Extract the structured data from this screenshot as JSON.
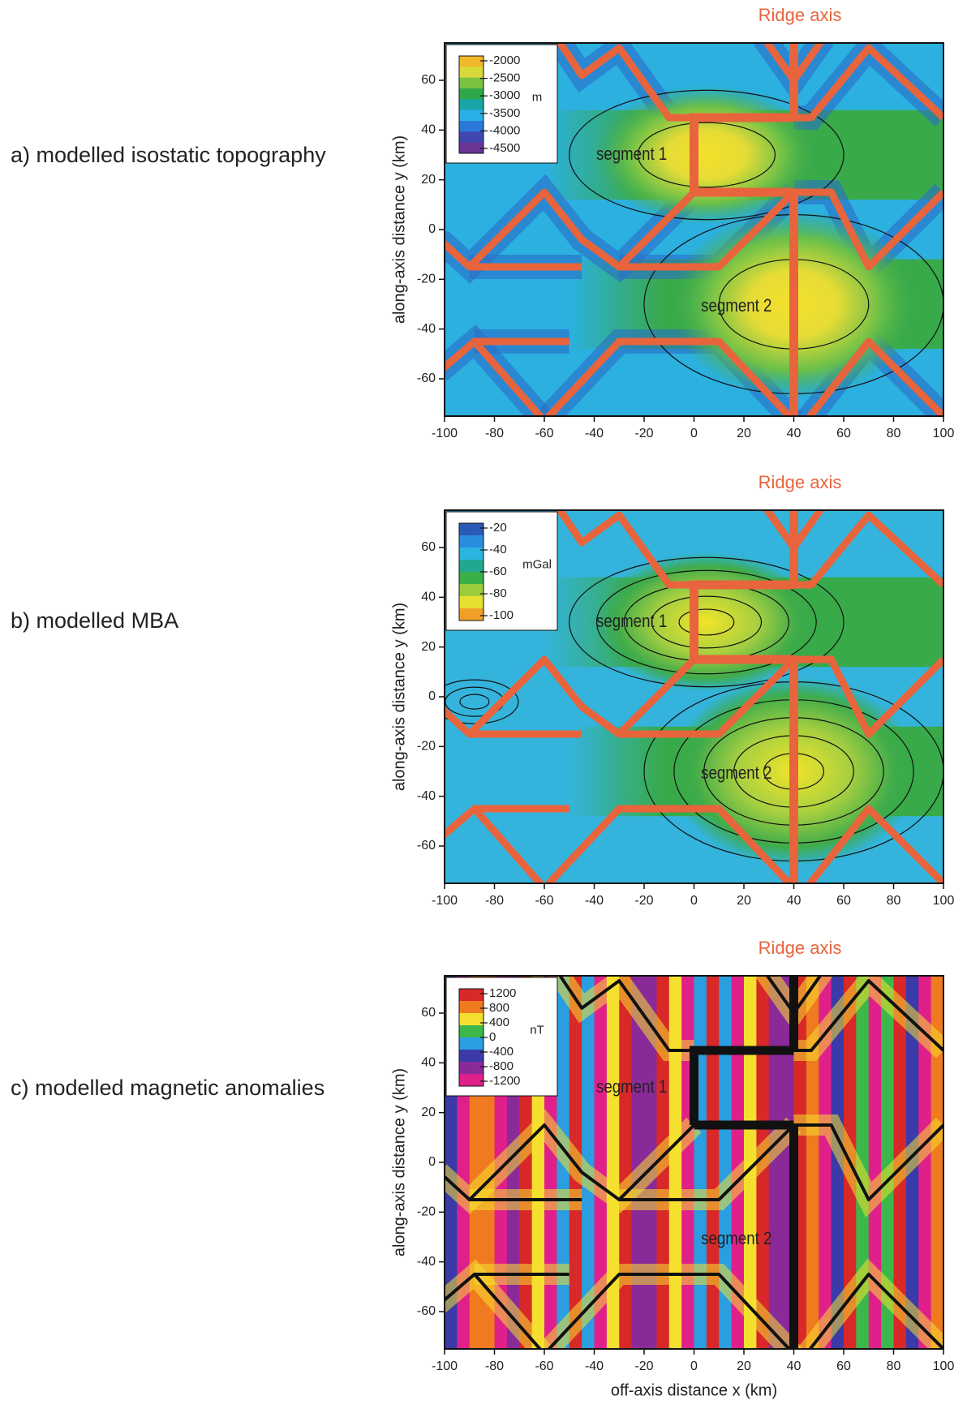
{
  "chart_data": [
    {
      "type": "heatmap",
      "panel_label": "a) modelled isostatic topography",
      "annotation": "Ridge axis",
      "annotation_color": "#e8643c",
      "segment_labels": [
        "segment 1",
        "segment 2"
      ],
      "y_label": "along-axis distance y (km)",
      "xlim": [
        -100,
        100
      ],
      "ylim": [
        -75,
        75
      ],
      "xticks": [
        -100,
        -80,
        -60,
        -40,
        -20,
        0,
        20,
        40,
        60,
        80,
        100
      ],
      "yticks": [
        -60,
        -40,
        -20,
        0,
        20,
        40,
        60
      ],
      "colorbar": {
        "ticks": [
          -2000,
          -2500,
          -3000,
          -3500,
          -4000,
          -4500
        ],
        "unit": "m",
        "colors": [
          "#f0b828",
          "#d8d83a",
          "#7cc242",
          "#2fa84a",
          "#1aa6a8",
          "#2ab0e8",
          "#2a78d8",
          "#4048b0",
          "#6a3494"
        ]
      },
      "boundary_color": "#e8643c"
    },
    {
      "type": "heatmap",
      "panel_label": "b) modelled MBA",
      "annotation": "Ridge axis",
      "annotation_color": "#e8643c",
      "segment_labels": [
        "segment 1",
        "segment 2"
      ],
      "y_label": "along-axis distance y (km)",
      "xlim": [
        -100,
        100
      ],
      "ylim": [
        -75,
        75
      ],
      "xticks": [
        -100,
        -80,
        -60,
        -40,
        -20,
        0,
        20,
        40,
        60,
        80,
        100
      ],
      "yticks": [
        -60,
        -40,
        -20,
        0,
        20,
        40,
        60
      ],
      "colorbar": {
        "ticks": [
          -20,
          -40,
          -60,
          -80,
          -100
        ],
        "unit": "mGal",
        "colors": [
          "#2a5ab8",
          "#2a8ee0",
          "#2ab4e0",
          "#22a890",
          "#3cb048",
          "#9ccc3c",
          "#e8e030",
          "#f0a028"
        ]
      },
      "boundary_color": "#e8643c"
    },
    {
      "type": "heatmap",
      "panel_label": "c) modelled magnetic anomalies",
      "annotation": "Ridge axis",
      "annotation_color": "#e8643c",
      "segment_labels": [
        "segment 1",
        "segment 2"
      ],
      "y_label": "along-axis distance y (km)",
      "x_label": "off-axis distance x (km)",
      "xlim": [
        -100,
        100
      ],
      "ylim": [
        -75,
        75
      ],
      "xticks": [
        -100,
        -80,
        -60,
        -40,
        -20,
        0,
        20,
        40,
        60,
        80,
        100
      ],
      "yticks": [
        -60,
        -40,
        -20,
        0,
        20,
        40,
        60
      ],
      "colorbar": {
        "ticks": [
          1200,
          800,
          400,
          0,
          -400,
          -800,
          -1200
        ],
        "unit": "nT",
        "colors": [
          "#d82828",
          "#f07a20",
          "#f5e030",
          "#3cb84a",
          "#2a9ee0",
          "#3a3aa8",
          "#8a2a98",
          "#e0208a"
        ]
      },
      "boundary_color": "#111111"
    }
  ]
}
